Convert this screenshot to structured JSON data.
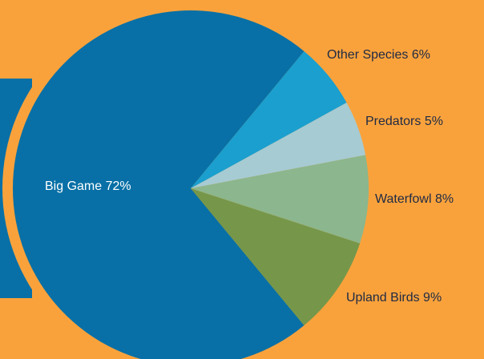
{
  "colors": {
    "background": "#f9a23c",
    "deco_panel": "#0870a6",
    "label_on_dark": "#ffffff",
    "label_on_light": "#1f2a44"
  },
  "chart_data": {
    "type": "pie",
    "title": "",
    "slices": [
      {
        "label": "Big Game 72%",
        "value": 72,
        "color": "#0870a6"
      },
      {
        "label": "Upland Birds 9%",
        "value": 9,
        "color": "#76974a"
      },
      {
        "label": "Waterfowl 8%",
        "value": 8,
        "color": "#8cb68d"
      },
      {
        "label": "Predators 5%",
        "value": 5,
        "color": "#a6cbd3"
      },
      {
        "label": "Other Species 6%",
        "value": 6,
        "color": "#1a9fcf"
      }
    ],
    "legend": "none"
  }
}
